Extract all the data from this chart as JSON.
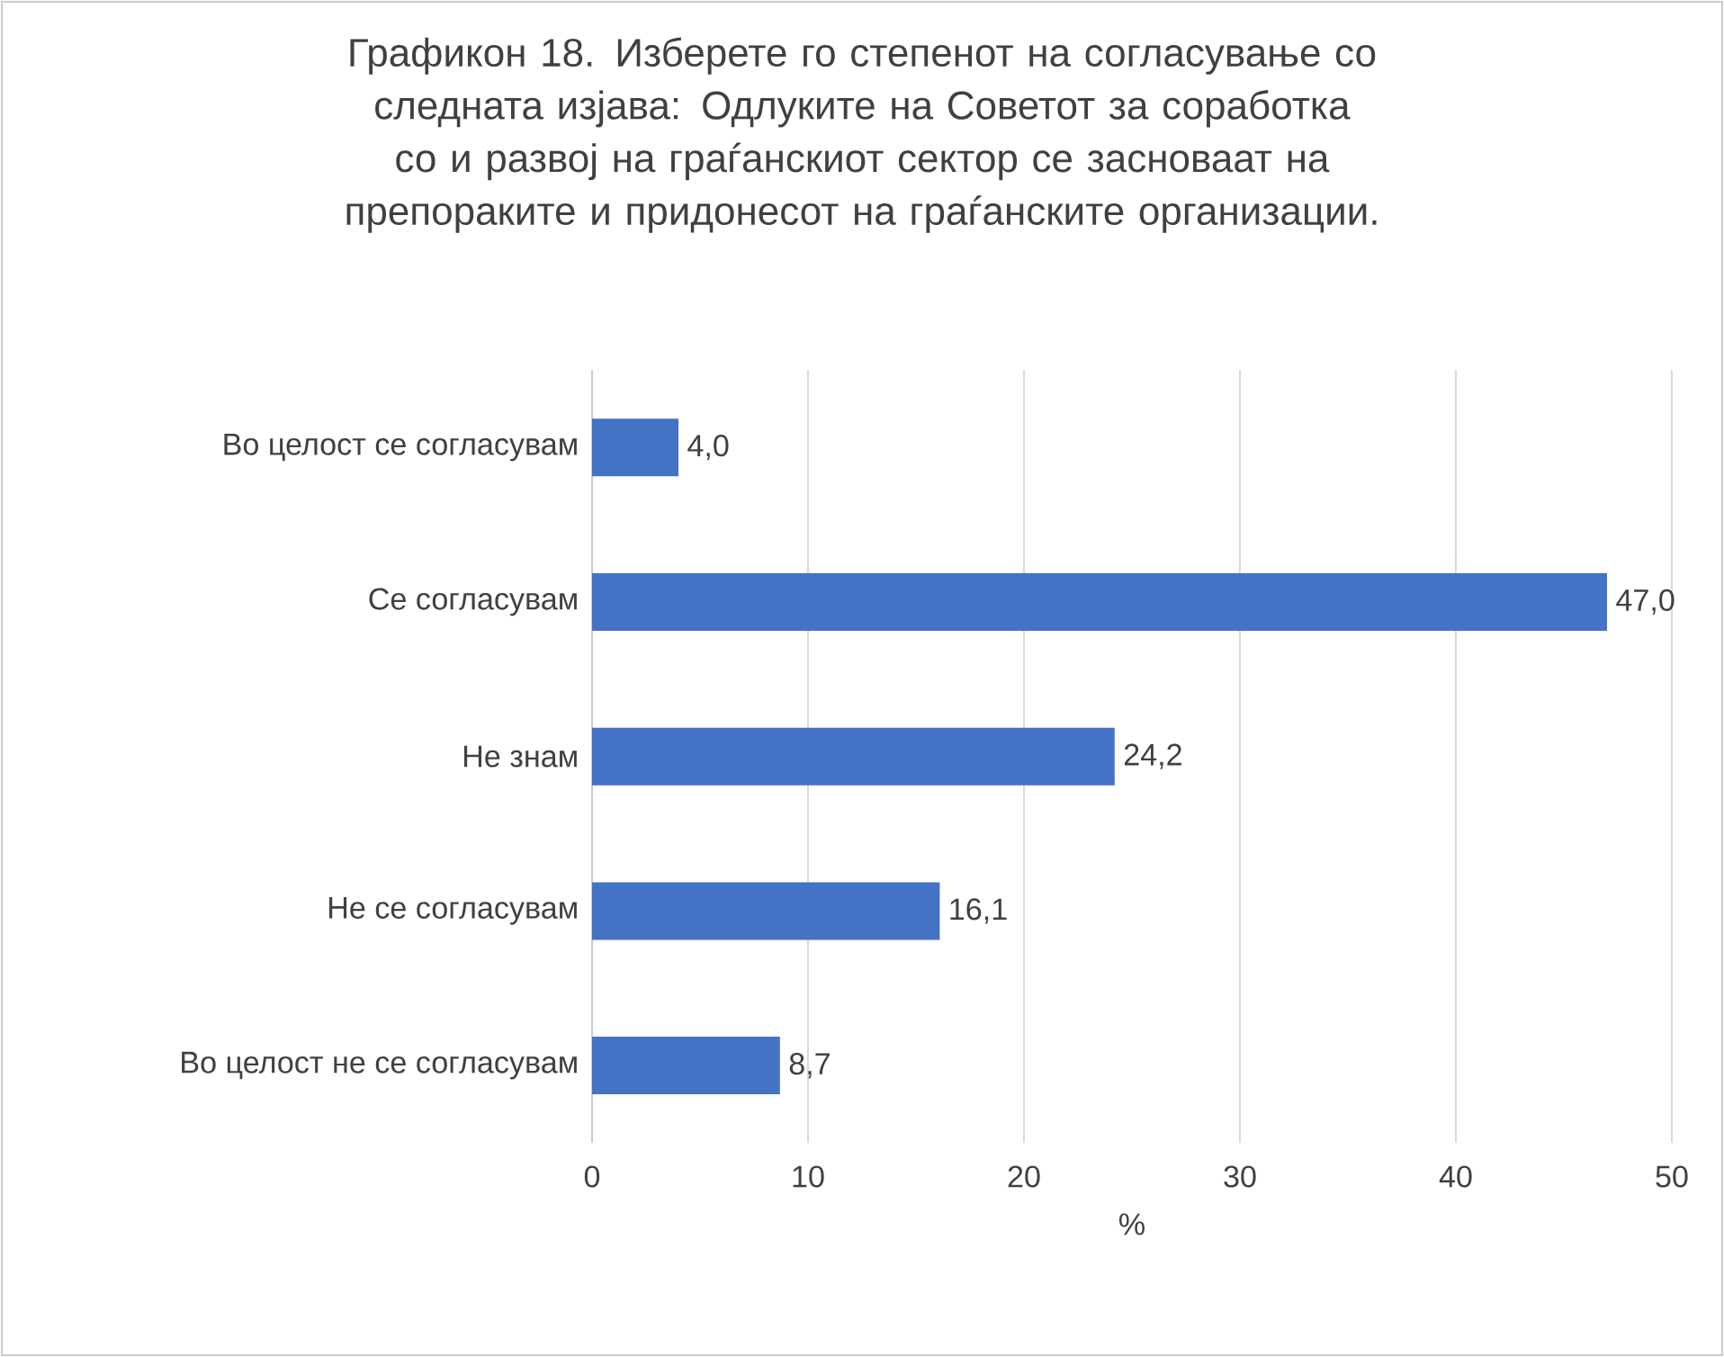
{
  "chart_data": {
    "type": "bar",
    "orientation": "horizontal",
    "title": "Графикон 18. Изберете го степенот на согласување со следната изјава: Одлуките на Советот за соработка со и развој на граѓанскиот сектор се засноваат на препораките и придонесот на граѓанските организации.",
    "categories": [
      "Во целост се согласувам",
      "Се согласувам",
      "Не знам",
      "Не се согласувам",
      "Во целост не се согласувам"
    ],
    "values": [
      4.0,
      47.0,
      24.2,
      16.1,
      8.7
    ],
    "value_labels": [
      "4,0",
      "47,0",
      "24,2",
      "16,1",
      "8,7"
    ],
    "color": "#4472c4",
    "xlabel": "%",
    "xlim": [
      0,
      50
    ],
    "xticks": [
      0,
      10,
      20,
      30,
      40,
      50
    ],
    "grid": "x"
  }
}
